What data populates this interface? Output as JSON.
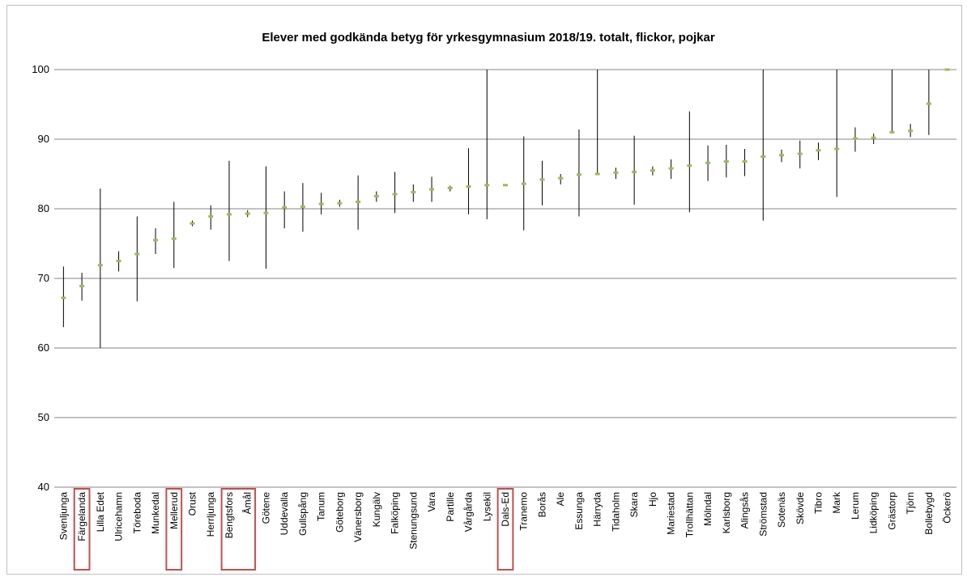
{
  "chart_data": {
    "type": "scatter",
    "title": "Elever med godkända betyg för yrkesgymnasium 2018/19. totalt, flickor, pojkar",
    "xlabel": "",
    "ylabel": "",
    "ylim": [
      40,
      100
    ],
    "yticks": [
      "40",
      "50",
      "60",
      "70",
      "80",
      "90",
      "100"
    ],
    "grid": true,
    "legend": "none",
    "categories": [
      "Svenljunga",
      "Färgelanda",
      "Lilla Edet",
      "Ulricehamn",
      "Töreboda",
      "Munkedal",
      "Mellerud",
      "Orust",
      "Herrljunga",
      "Bengtsfors",
      "Åmål",
      "Götene",
      "Uddevalla",
      "Gullspång",
      "Tanum",
      "Göteborg",
      "Vänersborg",
      "Kungälv",
      "Falköping",
      "Stenungsund",
      "Vara",
      "Partille",
      "Vårgårda",
      "Lysekil",
      "Dals-Ed",
      "Tranemo",
      "Borås",
      "Ale",
      "Essunga",
      "Härryda",
      "Tidaholm",
      "Skara",
      "Hjo",
      "Mariestad",
      "Trollhättan",
      "Mölndal",
      "Karlsborg",
      "Alingsås",
      "Strömstad",
      "Sotenäs",
      "Skövde",
      "Tibro",
      "Mark",
      "Lerum",
      "Lidköping",
      "Grästorp",
      "Tjörn",
      "Bollebygd",
      "Öckerö"
    ],
    "series": [
      {
        "values": [
          67.2,
          68.9,
          71.9,
          72.5,
          73.5,
          75.5,
          75.7,
          77.9,
          78.9,
          79.2,
          79.3,
          79.4,
          80.2,
          80.3,
          80.7,
          80.8,
          81.0,
          81.8,
          82.1,
          82.4,
          82.8,
          83.0,
          83.2,
          83.4,
          83.4,
          83.6,
          84.2,
          84.4,
          84.9,
          85.0,
          85.2,
          85.3,
          85.5,
          85.8,
          86.2,
          86.6,
          86.8,
          86.8,
          87.5,
          87.7,
          87.9,
          88.4,
          88.6,
          90.1,
          90.2,
          91.0,
          91.2,
          95.1,
          100.0
        ]
      },
      {
        "values": [
          63.0,
          66.8,
          60.0,
          71.0,
          66.7,
          73.5,
          71.5,
          77.5,
          77.0,
          72.5,
          78.8,
          71.4,
          77.2,
          76.7,
          79.2,
          80.3,
          77.0,
          81.0,
          79.4,
          81.0,
          81.0,
          82.5,
          79.2,
          78.5,
          83.4,
          76.9,
          80.5,
          83.5,
          78.9,
          85.0,
          84.3,
          80.6,
          84.8,
          84.3,
          79.5,
          84.0,
          84.5,
          84.7,
          78.3,
          86.7,
          85.8,
          87.0,
          81.7,
          88.2,
          89.3,
          91.0,
          90.3,
          90.6,
          100.0
        ]
      },
      {
        "values": [
          71.7,
          70.8,
          82.9,
          73.9,
          78.9,
          77.2,
          81.0,
          78.3,
          80.5,
          86.9,
          79.8,
          86.1,
          82.5,
          83.7,
          82.3,
          81.3,
          84.8,
          82.5,
          85.3,
          83.5,
          84.6,
          83.3,
          88.7,
          100.0,
          83.4,
          90.4,
          86.9,
          85.0,
          91.4,
          100.0,
          85.9,
          90.5,
          86.1,
          87.1,
          94.0,
          89.1,
          89.2,
          88.6,
          100.0,
          88.5,
          89.8,
          89.5,
          100.0,
          91.7,
          90.8,
          100.0,
          92.2,
          100.0,
          100.0
        ]
      }
    ],
    "highlighted_categories": [
      "Färgelanda",
      "Mellerud",
      "Bengtsfors",
      "Åmål",
      "Dals-Ed"
    ],
    "colors": {
      "marker": "#9bbb59",
      "range_line": "#000000",
      "highlight_box": "#c0504d",
      "grid": "#868686"
    }
  }
}
